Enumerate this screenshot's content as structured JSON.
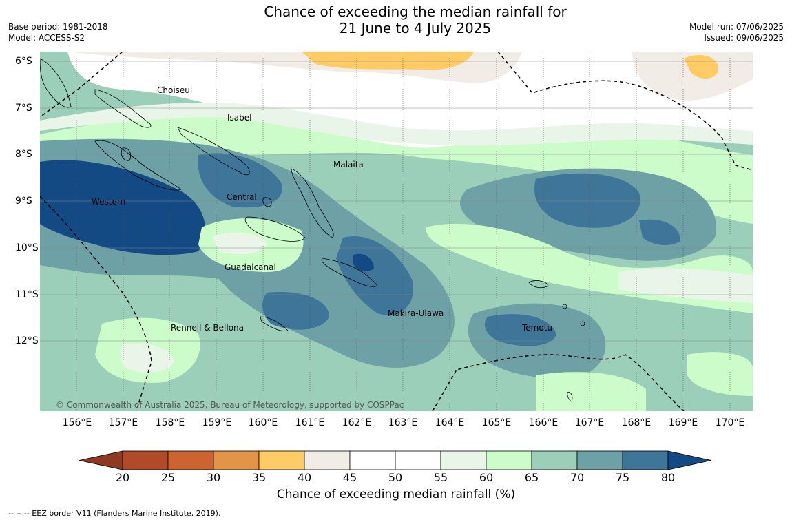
{
  "title_line1": "Chance of exceeding the median rainfall for",
  "title_line2": "21 June to 4 July 2025",
  "base_period": "Base period: 1981-2018",
  "model": "Model: ACCESS-S2",
  "model_run": "Model run: 07/06/2025",
  "issued": "Issued: 09/06/2025",
  "x_ticks": [
    "156°E",
    "157°E",
    "158°E",
    "159°E",
    "160°E",
    "161°E",
    "162°E",
    "163°E",
    "164°E",
    "165°E",
    "166°E",
    "167°E",
    "168°E",
    "169°E",
    "170°E"
  ],
  "y_ticks": [
    "6°S",
    "7°S",
    "8°S",
    "9°S",
    "10°S",
    "11°S",
    "12°S"
  ],
  "regions": {
    "choiseul": "Choiseul",
    "isabel": "Isabel",
    "malaita": "Malaita",
    "western": "Western",
    "central": "Central",
    "guadalcanal": "Guadalcanal",
    "makira": "Makira-Ulawa",
    "rennell": "Rennell & Bellona",
    "temotu": "Temotu"
  },
  "copyright": "© Commonwealth of Australia 2025, Bureau of Meteorology, supported by COSPPac",
  "colorbar": {
    "label": "Chance of exceeding median rainfall (%)",
    "ticks": [
      "20",
      "25",
      "30",
      "35",
      "40",
      "45",
      "50",
      "55",
      "60",
      "65",
      "70",
      "75",
      "80"
    ],
    "colors": [
      "#8e3a22",
      "#b04a28",
      "#cc6330",
      "#e39448",
      "#fecb64",
      "#f2ece6",
      "#ffffff",
      "#ffffff",
      "#eaf5ea",
      "#cbfcc9",
      "#9bcfb9",
      "#6da1a6",
      "#3e7599",
      "#134a84"
    ]
  },
  "footer": "-- -- -- EEZ border V11 (Flanders Marine Institute, 2019)."
}
